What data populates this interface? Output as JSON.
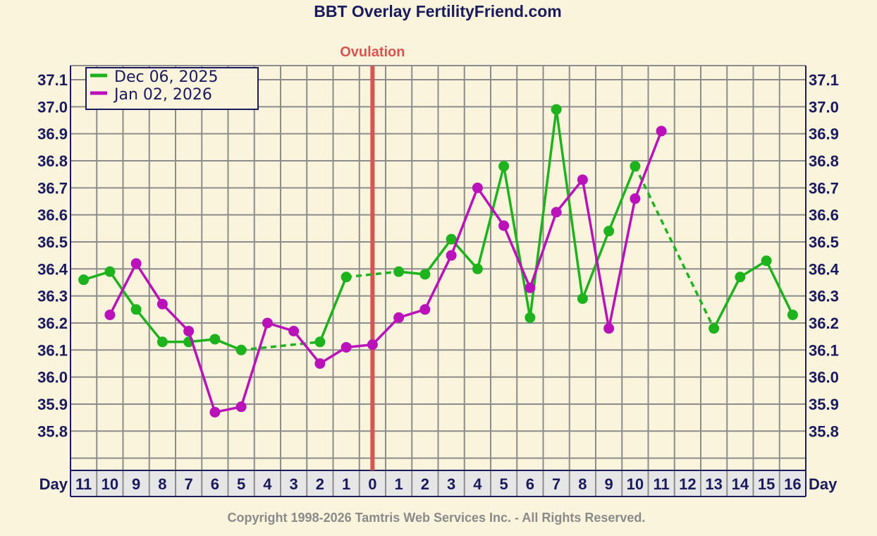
{
  "chart_data": {
    "type": "line",
    "title": "BBT Overlay FertilityFriend.com",
    "ovulation_label": "Ovulation",
    "x_axis_label": "Day",
    "categories": [
      "11",
      "10",
      "9",
      "8",
      "7",
      "6",
      "5",
      "4",
      "3",
      "2",
      "1",
      "0",
      "1",
      "2",
      "3",
      "4",
      "5",
      "6",
      "7",
      "8",
      "9",
      "10",
      "11",
      "12",
      "13",
      "14",
      "15",
      "16"
    ],
    "ovulation_index": 11,
    "y_ticks": [
      "37.1",
      "37.0",
      "36.9",
      "36.8",
      "36.7",
      "36.6",
      "36.5",
      "36.4",
      "36.3",
      "36.2",
      "36.1",
      "36.0",
      "35.9",
      "35.8"
    ],
    "ylim": [
      35.7,
      37.2
    ],
    "grid": true,
    "legend_position": "top-left",
    "series": [
      {
        "name": "Dec 06, 2025",
        "color": "#1db31d",
        "values": [
          36.36,
          36.39,
          36.25,
          36.13,
          36.13,
          36.14,
          36.1,
          null,
          null,
          36.13,
          36.37,
          null,
          36.39,
          36.38,
          36.51,
          36.4,
          36.78,
          36.22,
          36.99,
          36.29,
          36.54,
          36.78,
          null,
          null,
          36.18,
          36.37,
          36.43,
          36.23
        ]
      },
      {
        "name": "Jan 02, 2026",
        "color": "#bb11bb",
        "values": [
          null,
          36.23,
          36.42,
          36.27,
          36.17,
          35.87,
          35.89,
          36.2,
          36.17,
          36.05,
          36.11,
          36.12,
          36.22,
          36.25,
          36.45,
          36.7,
          36.56,
          36.33,
          36.61,
          36.73,
          36.18,
          36.66,
          36.91,
          null,
          null,
          null,
          null,
          null
        ]
      }
    ]
  },
  "footer": {
    "copyright": "Copyright 1998-2026 Tamtris Web Services Inc. - All Rights Reserved."
  },
  "colors": {
    "background": "#faf4dc",
    "grid": "#8c8c8c",
    "axis": "#1a1a5e",
    "ovulation": "#d9534f",
    "day_row": "#e6e6e6"
  }
}
